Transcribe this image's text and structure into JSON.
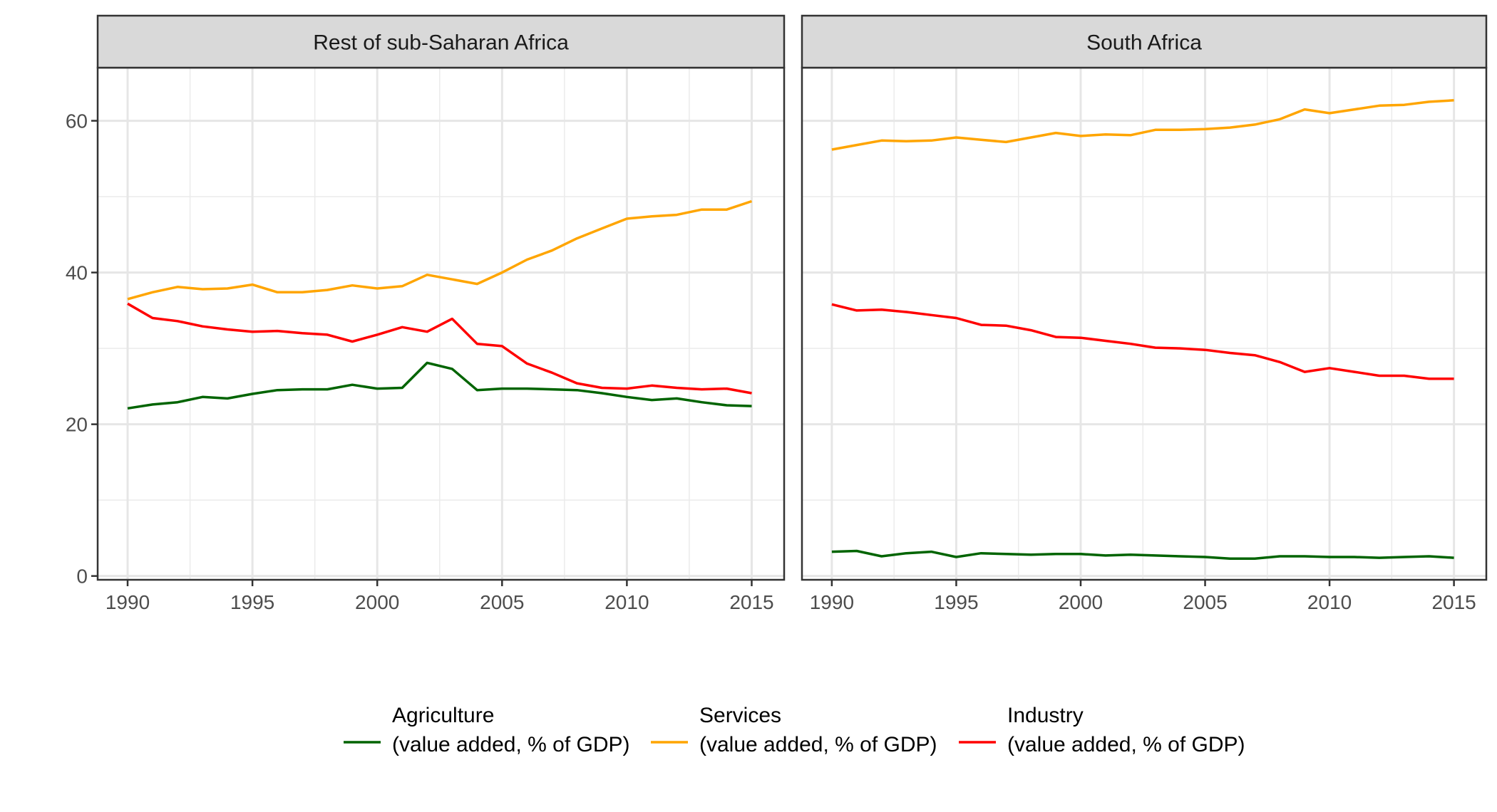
{
  "chart_data": [
    {
      "type": "line",
      "title": "Rest of sub-Saharan Africa",
      "xlabel": "",
      "ylabel": "",
      "xlim": [
        1988.8,
        2016.3
      ],
      "ylim": [
        -0.5,
        67
      ],
      "x_ticks": [
        1990,
        1995,
        2000,
        2005,
        2010,
        2015
      ],
      "y_ticks": [
        0,
        20,
        40,
        60
      ],
      "grid": true,
      "x": [
        1990,
        1991,
        1992,
        1993,
        1994,
        1995,
        1996,
        1997,
        1998,
        1999,
        2000,
        2001,
        2002,
        2003,
        2004,
        2005,
        2006,
        2007,
        2008,
        2009,
        2010,
        2011,
        2012,
        2013,
        2014,
        2015
      ],
      "series": [
        {
          "name": "Agriculture\n(value added, % of GDP)",
          "color": "#006400",
          "values": [
            22.1,
            22.6,
            22.9,
            23.6,
            23.4,
            24.0,
            24.5,
            24.6,
            24.6,
            25.2,
            24.7,
            24.8,
            28.1,
            27.3,
            24.5,
            24.7,
            24.7,
            24.6,
            24.5,
            24.1,
            23.6,
            23.2,
            23.4,
            22.9,
            22.5,
            22.4
          ]
        },
        {
          "name": "Services\n(value added, % of GDP)",
          "color": "#FFA500",
          "values": [
            36.5,
            37.4,
            38.1,
            37.8,
            37.9,
            38.4,
            37.4,
            37.4,
            37.7,
            38.3,
            37.9,
            38.2,
            39.7,
            39.1,
            38.5,
            40.0,
            41.7,
            42.9,
            44.5,
            45.8,
            47.1,
            47.4,
            47.6,
            48.3,
            48.3,
            49.4
          ]
        },
        {
          "name": "Industry\n(value added, % of GDP)",
          "color": "#FF0000",
          "values": [
            35.9,
            34.0,
            33.6,
            32.9,
            32.5,
            32.2,
            32.3,
            32.0,
            31.8,
            30.9,
            31.8,
            32.8,
            32.2,
            33.9,
            30.6,
            30.3,
            28.0,
            26.8,
            25.4,
            24.8,
            24.7,
            25.1,
            24.8,
            24.6,
            24.7,
            24.1
          ]
        }
      ]
    },
    {
      "type": "line",
      "title": "South Africa",
      "xlabel": "",
      "ylabel": "",
      "xlim": [
        1988.8,
        2016.3
      ],
      "ylim": [
        -0.5,
        67
      ],
      "x_ticks": [
        1990,
        1995,
        2000,
        2005,
        2010,
        2015
      ],
      "y_ticks": [
        0,
        20,
        40,
        60
      ],
      "grid": true,
      "x": [
        1990,
        1991,
        1992,
        1993,
        1994,
        1995,
        1996,
        1997,
        1998,
        1999,
        2000,
        2001,
        2002,
        2003,
        2004,
        2005,
        2006,
        2007,
        2008,
        2009,
        2010,
        2011,
        2012,
        2013,
        2014,
        2015
      ],
      "series": [
        {
          "name": "Agriculture\n(value added, % of GDP)",
          "color": "#006400",
          "values": [
            3.2,
            3.3,
            2.6,
            3.0,
            3.2,
            2.5,
            3.0,
            2.9,
            2.8,
            2.9,
            2.9,
            2.7,
            2.8,
            2.7,
            2.6,
            2.5,
            2.3,
            2.3,
            2.6,
            2.6,
            2.5,
            2.5,
            2.4,
            2.5,
            2.6,
            2.4
          ]
        },
        {
          "name": "Services\n(value added, % of GDP)",
          "color": "#FFA500",
          "values": [
            56.2,
            56.8,
            57.4,
            57.3,
            57.4,
            57.8,
            57.5,
            57.2,
            57.8,
            58.4,
            58.0,
            58.2,
            58.1,
            58.8,
            58.8,
            58.9,
            59.1,
            59.5,
            60.2,
            61.5,
            61.0,
            61.5,
            62.0,
            62.1,
            62.5,
            62.7
          ]
        },
        {
          "name": "Industry\n(value added, % of GDP)",
          "color": "#FF0000",
          "values": [
            35.8,
            35.0,
            35.1,
            34.8,
            34.4,
            34.0,
            33.1,
            33.0,
            32.4,
            31.5,
            31.4,
            31.0,
            30.6,
            30.1,
            30.0,
            29.8,
            29.4,
            29.1,
            28.2,
            26.9,
            27.4,
            26.9,
            26.4,
            26.4,
            26.0,
            26.0
          ]
        }
      ]
    }
  ],
  "legend": {
    "placement": "bottom",
    "items": [
      {
        "line1": "Agriculture",
        "line2": "(value added, % of GDP)",
        "color": "#006400"
      },
      {
        "line1": "Services",
        "line2": "(value added, % of GDP)",
        "color": "#FFA500"
      },
      {
        "line1": "Industry",
        "line2": "(value added, % of GDP)",
        "color": "#FF0000"
      }
    ]
  }
}
